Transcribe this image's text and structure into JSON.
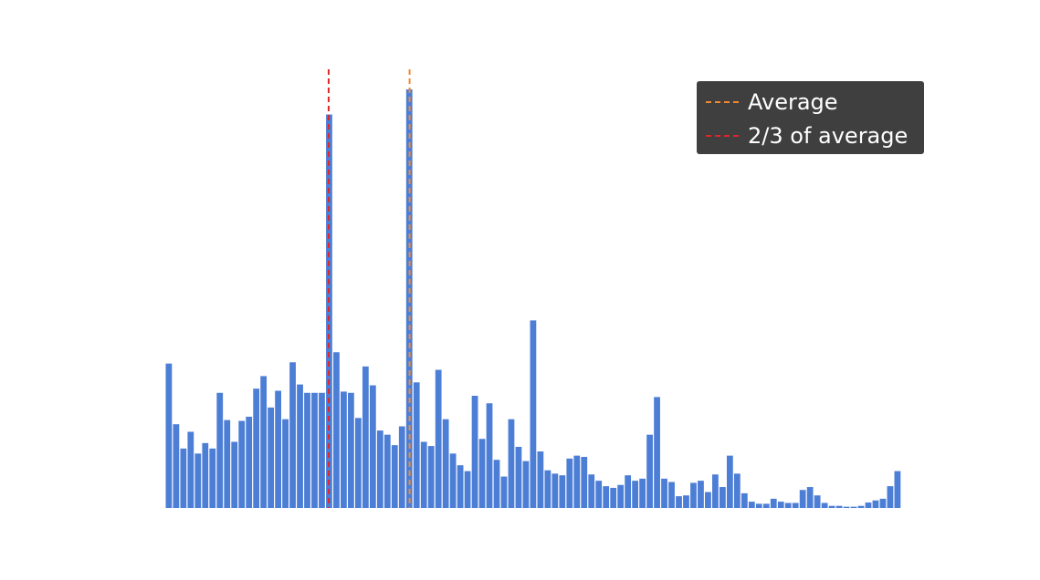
{
  "chart_data": {
    "type": "bar",
    "bar_color": "#4c7ed6",
    "y_range": [
      0,
      100
    ],
    "x_range": [
      0,
      100
    ],
    "values": [
      34.5,
      20,
      14.2,
      18.2,
      13,
      15.5,
      14.2,
      27.5,
      21,
      15.8,
      20.8,
      21.8,
      28.5,
      31.5,
      24,
      28,
      21.2,
      34.8,
      29.5,
      27.5,
      27.5,
      27.5,
      94,
      37.2,
      27.8,
      27.5,
      21.5,
      33.8,
      29.3,
      18.5,
      17.5,
      15,
      19.5,
      100,
      30,
      15.8,
      14.8,
      33,
      21.2,
      13,
      10.2,
      8.8,
      26.8,
      16.5,
      25,
      11.5,
      7.5,
      21.2,
      14.6,
      11.2,
      44.8,
      13.5,
      9,
      8.2,
      7.8,
      11.8,
      12.5,
      12.2,
      8,
      6.5,
      5.2,
      4.8,
      5.5,
      7.8,
      6.5,
      7,
      17.5,
      26.5,
      7,
      6.2,
      2.8,
      3,
      6,
      6.5,
      3.8,
      8,
      5,
      12.5,
      8.2,
      3.5,
      1.5,
      1,
      1,
      2.2,
      1.5,
      1.2,
      1.2,
      4.3,
      5,
      3,
      1.2,
      0.5,
      0.5,
      0.3,
      0.3,
      0.5,
      1.3,
      1.8,
      2.2,
      5.2,
      8.8
    ],
    "series": [
      {
        "name": "Average",
        "x": 33.2,
        "color": "#f08a30",
        "style": "dashed"
      },
      {
        "name": "2/3 of average",
        "x": 22.2,
        "color": "#e0262a",
        "style": "dashed"
      }
    ],
    "legend": {
      "placement": "top-right",
      "background": "#3f3f3f",
      "text_color": "#ffffff"
    },
    "axes_visible": false,
    "grid": false
  }
}
